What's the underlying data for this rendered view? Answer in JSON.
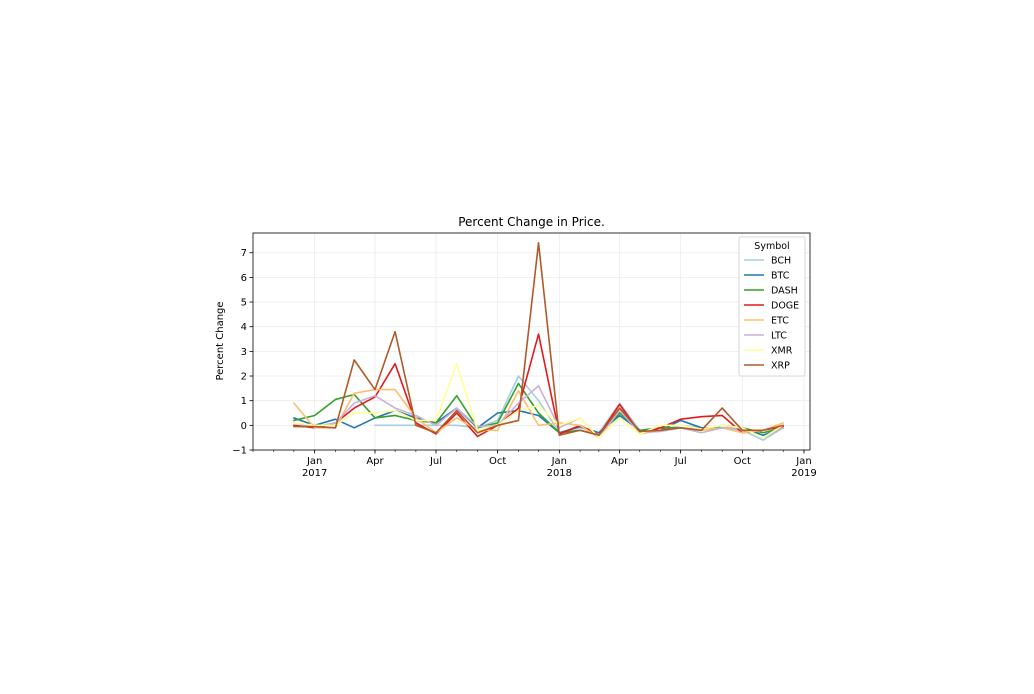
{
  "chart_data": {
    "type": "line",
    "title": "Percent Change in Price.",
    "xlabel": "",
    "ylabel": "Percent Change",
    "ylim": [
      -1,
      7.8
    ],
    "xlim": [
      "2016-10-01",
      "2019-01-10"
    ],
    "grid": true,
    "legend": {
      "title": "Symbol",
      "placement": "top-right"
    },
    "yticks": [
      -1,
      0,
      1,
      2,
      3,
      4,
      5,
      6,
      7
    ],
    "ytick_labels": [
      "−1",
      "0",
      "1",
      "2",
      "3",
      "4",
      "5",
      "6",
      "7"
    ],
    "xticks": [
      {
        "date": "2017-01-01",
        "month": "Jan",
        "year": "2017"
      },
      {
        "date": "2017-04-01",
        "month": "Apr",
        "year": ""
      },
      {
        "date": "2017-07-01",
        "month": "Jul",
        "year": ""
      },
      {
        "date": "2017-10-01",
        "month": "Oct",
        "year": ""
      },
      {
        "date": "2018-01-01",
        "month": "Jan",
        "year": "2018"
      },
      {
        "date": "2018-04-01",
        "month": "Apr",
        "year": ""
      },
      {
        "date": "2018-07-01",
        "month": "Jul",
        "year": ""
      },
      {
        "date": "2018-10-01",
        "month": "Oct",
        "year": ""
      },
      {
        "date": "2019-01-01",
        "month": "Jan",
        "year": "2019"
      }
    ],
    "x": [
      "2016-12-01",
      "2017-01-01",
      "2017-02-01",
      "2017-03-01",
      "2017-04-01",
      "2017-05-01",
      "2017-06-01",
      "2017-07-01",
      "2017-08-01",
      "2017-09-01",
      "2017-10-01",
      "2017-11-01",
      "2017-12-01",
      "2018-01-01",
      "2018-02-01",
      "2018-03-01",
      "2018-04-01",
      "2018-05-01",
      "2018-06-01",
      "2018-07-01",
      "2018-08-01",
      "2018-09-01",
      "2018-10-01",
      "2018-11-01",
      "2018-12-01"
    ],
    "series": [
      {
        "name": "BCH",
        "color": "#a6cee3",
        "values": [
          null,
          null,
          null,
          null,
          0,
          0,
          0,
          0,
          0,
          -0.1,
          0.2,
          2.0,
          1.0,
          -0.3,
          -0.1,
          -0.3,
          0.9,
          -0.2,
          -0.2,
          0.0,
          -0.1,
          -0.1,
          -0.2,
          -0.6,
          -0.1
        ]
      },
      {
        "name": "BTC",
        "color": "#1f78b4",
        "values": [
          0.3,
          0.0,
          0.25,
          -0.1,
          0.3,
          0.6,
          0.3,
          0.1,
          0.7,
          -0.1,
          0.5,
          0.6,
          0.4,
          -0.3,
          -0.05,
          -0.3,
          0.4,
          -0.2,
          -0.2,
          0.2,
          -0.1,
          -0.1,
          -0.1,
          -0.4,
          -0.1
        ]
      },
      {
        "name": "DASH",
        "color": "#33a02c",
        "values": [
          0.2,
          0.4,
          1.05,
          1.25,
          0.3,
          0.4,
          0.2,
          0.1,
          1.2,
          -0.1,
          0.1,
          1.7,
          0.5,
          -0.3,
          -0.2,
          -0.4,
          0.5,
          -0.2,
          -0.1,
          -0.1,
          -0.2,
          0.0,
          -0.1,
          -0.3,
          -0.1
        ]
      },
      {
        "name": "DOGE",
        "color": "#e31a1c",
        "values": [
          0.0,
          -0.1,
          0.1,
          0.7,
          1.15,
          2.5,
          0.1,
          -0.35,
          0.5,
          -0.45,
          0.0,
          0.7,
          3.7,
          -0.35,
          0.0,
          -0.4,
          0.85,
          -0.3,
          -0.1,
          0.25,
          0.35,
          0.4,
          -0.3,
          -0.2,
          -0.05
        ]
      },
      {
        "name": "ETC",
        "color": "#fdbf6f",
        "values": [
          0.9,
          -0.1,
          -0.1,
          1.3,
          1.45,
          1.45,
          0.3,
          -0.3,
          0.3,
          -0.2,
          -0.2,
          1.4,
          0.0,
          0.1,
          0.0,
          -0.5,
          0.3,
          -0.35,
          -0.2,
          -0.1,
          -0.2,
          -0.1,
          -0.3,
          -0.2,
          0.1
        ]
      },
      {
        "name": "LTC",
        "color": "#cab2d6",
        "values": [
          0.1,
          -0.05,
          0.1,
          0.9,
          1.2,
          0.7,
          0.4,
          0.0,
          0.7,
          -0.05,
          0.0,
          0.9,
          1.6,
          -0.1,
          0.3,
          -0.5,
          0.6,
          -0.3,
          -0.25,
          -0.1,
          -0.3,
          -0.1,
          -0.1,
          -0.5,
          -0.1
        ]
      },
      {
        "name": "XMR",
        "color": "#ffff99",
        "values": [
          0.1,
          0.0,
          0.0,
          0.5,
          0.5,
          0.6,
          0.2,
          0.2,
          2.5,
          -0.2,
          0.0,
          0.6,
          0.8,
          0.0,
          0.3,
          -0.5,
          0.3,
          -0.35,
          0.0,
          0.0,
          -0.15,
          0.0,
          -0.1,
          -0.5,
          0.0
        ]
      },
      {
        "name": "XRP",
        "color": "#b15928",
        "values": [
          -0.05,
          -0.05,
          -0.1,
          2.65,
          1.45,
          3.8,
          0.0,
          -0.3,
          0.6,
          -0.3,
          0.0,
          0.2,
          7.4,
          -0.4,
          -0.2,
          -0.4,
          0.7,
          -0.25,
          -0.2,
          -0.1,
          -0.2,
          0.7,
          -0.2,
          -0.2,
          0.0
        ]
      }
    ]
  }
}
